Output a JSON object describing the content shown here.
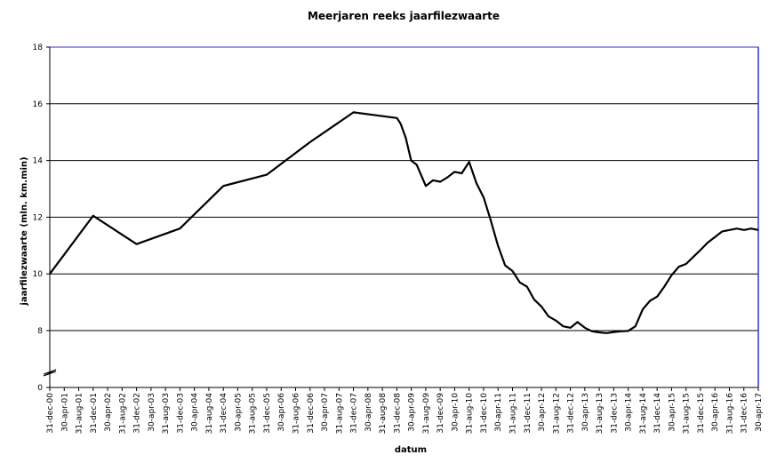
{
  "chart_data": {
    "type": "line",
    "title": "Meerjaren reeks jaarfilezwaarte",
    "xlabel": "datum",
    "ylabel": "jaarfilezwaarte (mln. km.min)",
    "ylim": [
      0,
      18
    ],
    "y_ticks": [
      0,
      8,
      10,
      12,
      14,
      16,
      18
    ],
    "axis_break": "between 0 and 8",
    "grid": "horizontal",
    "legend": "none",
    "x_tick_labels": [
      "31-dec-00",
      "30-apr-01",
      "31-aug-01",
      "31-dec-01",
      "30-apr-02",
      "31-aug-02",
      "31-dec-02",
      "30-apr-03",
      "31-aug-03",
      "31-dec-03",
      "30-apr-04",
      "31-aug-04",
      "31-dec-04",
      "30-apr-05",
      "31-aug-05",
      "31-dec-05",
      "30-apr-06",
      "31-aug-06",
      "31-dec-06",
      "30-apr-07",
      "31-aug-07",
      "31-dec-07",
      "30-apr-08",
      "31-aug-08",
      "31-dec-08",
      "30-apr-09",
      "31-aug-09",
      "31-dec-09",
      "30-apr-10",
      "31-aug-10",
      "31-dec-10",
      "30-apr-11",
      "31-aug-11",
      "31-dec-11",
      "30-apr-12",
      "31-aug-12",
      "31-dec-12",
      "30-apr-13",
      "31-aug-13",
      "31-dec-13",
      "30-apr-14",
      "31-aug-14",
      "31-dec-14",
      "30-apr-15",
      "31-aug-15",
      "31-dec-15",
      "30-apr-16",
      "31-aug-16",
      "31-dec-16",
      "30-apr-17"
    ],
    "series": [
      {
        "color": "#000000",
        "x": [
          "2000-12-31",
          "2001-12-31",
          "2002-12-31",
          "2003-12-31",
          "2004-12-31",
          "2005-12-31",
          "2006-12-31",
          "2007-12-31",
          "2008-12-31",
          "2009-01-31",
          "2009-03-15",
          "2009-04-30",
          "2009-06-15",
          "2009-08-31",
          "2009-10-31",
          "2009-12-31",
          "2010-02-28",
          "2010-04-30",
          "2010-06-30",
          "2010-08-31",
          "2010-10-31",
          "2010-12-31",
          "2011-02-28",
          "2011-04-30",
          "2011-06-30",
          "2011-08-31",
          "2011-10-31",
          "2011-12-31",
          "2012-02-28",
          "2012-04-30",
          "2012-06-30",
          "2012-08-31",
          "2012-10-31",
          "2012-12-31",
          "2013-02-28",
          "2013-04-30",
          "2013-06-30",
          "2013-08-31",
          "2013-10-31",
          "2013-12-31",
          "2014-02-28",
          "2014-04-30",
          "2014-06-30",
          "2014-08-31",
          "2014-10-31",
          "2014-12-31",
          "2015-02-28",
          "2015-04-30",
          "2015-06-30",
          "2015-08-31",
          "2015-10-31",
          "2015-12-31",
          "2016-02-28",
          "2016-04-30",
          "2016-06-30",
          "2016-08-31",
          "2016-10-31",
          "2016-12-31",
          "2017-02-28",
          "2017-04-30"
        ],
        "y": [
          10.0,
          12.05,
          11.05,
          11.6,
          13.1,
          13.5,
          14.65,
          15.7,
          15.5,
          15.3,
          14.8,
          14.0,
          13.85,
          13.1,
          13.3,
          13.25,
          13.4,
          13.6,
          13.55,
          13.95,
          13.2,
          12.7,
          11.9,
          11.0,
          10.3,
          10.1,
          9.7,
          9.55,
          9.1,
          8.85,
          8.5,
          8.35,
          8.15,
          8.1,
          8.3,
          8.1,
          7.9,
          7.75,
          7.65,
          7.8,
          7.9,
          7.95,
          8.15,
          8.75,
          9.05,
          9.2,
          9.55,
          9.95,
          10.25,
          10.35,
          10.6,
          10.85,
          11.1,
          11.3,
          11.5,
          11.55,
          11.6,
          11.55,
          11.6,
          11.55
        ]
      }
    ]
  }
}
